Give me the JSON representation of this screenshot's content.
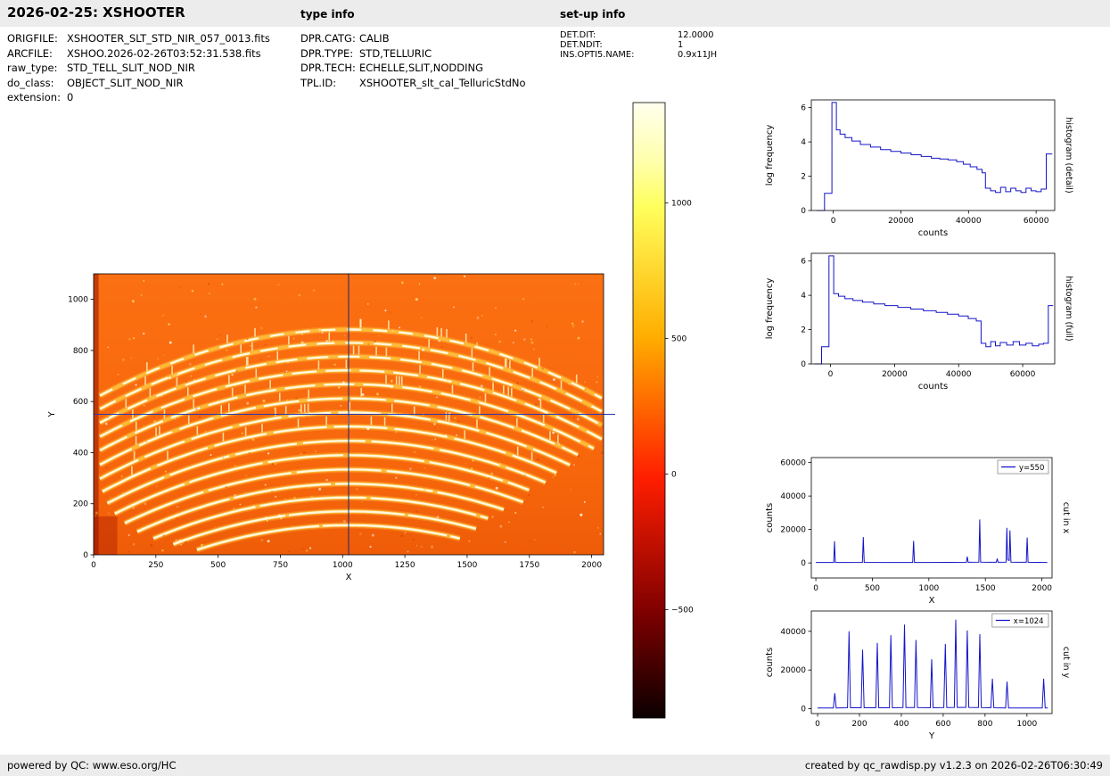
{
  "header": {
    "title": "2026-02-25: XSHOOTER",
    "type_info_label": "type info",
    "setup_info_label": "set-up info"
  },
  "metadata": {
    "file_info": [
      {
        "key": "ORIGFILE:",
        "value": "XSHOOTER_SLT_STD_NIR_057_0013.fits"
      },
      {
        "key": "ARCFILE:",
        "value": "XSHOO.2026-02-26T03:52:31.538.fits"
      },
      {
        "key": "raw_type:",
        "value": "STD_TELL_SLIT_NOD_NIR"
      },
      {
        "key": "do_class:",
        "value": "OBJECT_SLIT_NOD_NIR"
      },
      {
        "key": "extension:",
        "value": "0"
      }
    ],
    "type_info": [
      {
        "key": "DPR.CATG:",
        "value": "CALIB"
      },
      {
        "key": "DPR.TYPE:",
        "value": "STD,TELLURIC"
      },
      {
        "key": "DPR.TECH:",
        "value": "ECHELLE,SLIT,NODDING"
      },
      {
        "key": "TPL.ID:",
        "value": "XSHOOTER_slt_cal_TelluricStdNo"
      }
    ],
    "setup_info": [
      {
        "key": "DET.DIT:",
        "value": "12.0000"
      },
      {
        "key": "DET.NDIT:",
        "value": "1"
      },
      {
        "key": "INS.OPTI5.NAME:",
        "value": "0.9x11JH"
      }
    ]
  },
  "footer": {
    "left": "powered by QC: www.eso.org/HC",
    "right": "created by qc_rawdisp.py v1.2.3 on 2026-02-26T06:30:49"
  },
  "chart_data": [
    {
      "id": "raw_frame",
      "type": "heatmap",
      "title": "",
      "xlabel": "X",
      "ylabel": "Y",
      "xlim": [
        0,
        2048
      ],
      "ylim": [
        0,
        1100
      ],
      "xticks": [
        0,
        250,
        500,
        750,
        1000,
        1250,
        1500,
        1750,
        2000
      ],
      "yticks": [
        0,
        200,
        400,
        600,
        800,
        1000
      ],
      "crosshair": {
        "x": 1024,
        "y": 550
      },
      "colormap": "hot",
      "background_color": "#f8680c",
      "description": "Raw XSHOOTER NIR echelle frame: ~15 upward-bowed spectral orders, bright segments and sky-line ticks, hot colormap, crosshair at x=1024 / y=550",
      "orders": [
        {
          "apex": 882,
          "x0": 25,
          "x1": 2045,
          "dash": "16 13"
        },
        {
          "apex": 830,
          "x0": 25,
          "x1": 2045,
          "dash": "20 12"
        },
        {
          "apex": 776,
          "x0": 25,
          "x1": 2045,
          "dash": "24 11"
        },
        {
          "apex": 722,
          "x0": 25,
          "x1": 2045,
          "dash": "28 10"
        },
        {
          "apex": 668,
          "x0": 25,
          "x1": 2020,
          "dash": "34 10"
        },
        {
          "apex": 612,
          "x0": 25,
          "x1": 1975,
          "dash": "40 9"
        },
        {
          "apex": 557,
          "x0": 25,
          "x1": 1930,
          "dash": "48 8"
        },
        {
          "apex": 502,
          "x0": 35,
          "x1": 1880,
          "dash": "60 8"
        },
        {
          "apex": 446,
          "x0": 55,
          "x1": 1830,
          "dash": "70 7"
        },
        {
          "apex": 390,
          "x0": 85,
          "x1": 1780,
          "dash": "85 6"
        },
        {
          "apex": 334,
          "x0": 125,
          "x1": 1725,
          "dash": "95 6"
        },
        {
          "apex": 278,
          "x0": 175,
          "x1": 1670,
          "dash": "110 5"
        },
        {
          "apex": 224,
          "x0": 240,
          "x1": 1615,
          "dash": "120 5"
        },
        {
          "apex": 170,
          "x0": 320,
          "x1": 1555,
          "dash": "130 4"
        },
        {
          "apex": 116,
          "x0": 415,
          "x1": 1490,
          "dash": "140 4"
        }
      ]
    },
    {
      "id": "colorbar",
      "type": "colorbar",
      "colormap": "hot",
      "tick_values": [
        1000,
        500,
        0,
        -500
      ],
      "tick_labels": [
        "1000",
        "500",
        "0",
        "−500"
      ],
      "vmin": -900,
      "vmax": 1370,
      "gradient": [
        {
          "offset": 0,
          "color": "#ffffee"
        },
        {
          "offset": 0.1,
          "color": "#ffffa8"
        },
        {
          "offset": 0.17,
          "color": "#ffff5c"
        },
        {
          "offset": 0.38,
          "color": "#ffae00"
        },
        {
          "offset": 0.61,
          "color": "#ff1e00"
        },
        {
          "offset": 0.83,
          "color": "#7e0000"
        },
        {
          "offset": 1,
          "color": "#0b0000"
        }
      ]
    },
    {
      "id": "hist_detail",
      "type": "line",
      "step": true,
      "xlabel": "counts",
      "ylabel": "log frequency",
      "right_label": "histogram (detail)",
      "color": "#1414c8",
      "xlim": [
        -6500,
        65500
      ],
      "ylim": [
        0,
        6.45
      ],
      "xticks": [
        0,
        20000,
        40000,
        60000
      ],
      "yticks": [
        0,
        2,
        4,
        6
      ],
      "x": [
        -5000,
        -2600,
        -400,
        900,
        2000,
        3500,
        5500,
        8000,
        11000,
        14000,
        17000,
        20000,
        23000,
        26000,
        29000,
        31500,
        34000,
        36500,
        38500,
        40500,
        42500,
        44000,
        45000,
        46500,
        48000,
        49500,
        51000,
        52500,
        54000,
        55500,
        57000,
        58500,
        60000,
        61500,
        63000,
        64800
      ],
      "y": [
        0,
        1.0,
        6.3,
        4.7,
        4.45,
        4.25,
        4.05,
        3.85,
        3.7,
        3.55,
        3.45,
        3.35,
        3.25,
        3.15,
        3.05,
        3.0,
        2.95,
        2.85,
        2.7,
        2.55,
        2.4,
        2.2,
        1.3,
        1.15,
        1.05,
        1.35,
        1.1,
        1.3,
        1.15,
        1.05,
        1.3,
        1.15,
        1.1,
        1.25,
        3.3,
        3.3
      ]
    },
    {
      "id": "hist_full",
      "type": "line",
      "step": true,
      "xlabel": "counts",
      "ylabel": "log frequency",
      "right_label": "histogram (full)",
      "color": "#1414c8",
      "xlim": [
        -6000,
        70000
      ],
      "ylim": [
        0,
        6.45
      ],
      "xticks": [
        0,
        20000,
        40000,
        60000
      ],
      "yticks": [
        0,
        2,
        4,
        6
      ],
      "x": [
        -5000,
        -2800,
        -500,
        1000,
        2500,
        4500,
        7000,
        10000,
        13500,
        17000,
        21000,
        25000,
        29000,
        33000,
        36500,
        40000,
        43000,
        45500,
        47000,
        48500,
        50000,
        51500,
        53000,
        55000,
        57000,
        59000,
        61000,
        63000,
        65000,
        66500,
        68000,
        69500
      ],
      "y": [
        0,
        1.0,
        6.3,
        4.1,
        3.95,
        3.8,
        3.7,
        3.6,
        3.5,
        3.4,
        3.3,
        3.2,
        3.1,
        3.0,
        2.9,
        2.8,
        2.65,
        2.5,
        1.2,
        1.0,
        1.3,
        1.05,
        1.25,
        1.1,
        1.3,
        1.1,
        1.2,
        1.05,
        1.15,
        1.2,
        3.4,
        3.4
      ]
    },
    {
      "id": "cut_x",
      "type": "line",
      "step": false,
      "legend": "y=550",
      "xlabel": "X",
      "ylabel": "counts",
      "right_label": "cut in x",
      "color": "#1414c8",
      "xlim": [
        -40,
        2090
      ],
      "ylim": [
        -9000,
        63000
      ],
      "xticks": [
        0,
        500,
        1000,
        1500,
        2000
      ],
      "yticks": [
        0,
        20000,
        40000,
        60000
      ],
      "x": [
        0,
        150,
        158,
        165,
        172,
        300,
        412,
        420,
        428,
        600,
        857,
        865,
        873,
        1000,
        1332,
        1340,
        1348,
        1442,
        1450,
        1458,
        1540,
        1597,
        1605,
        1613,
        1683,
        1690,
        1697,
        1711,
        1718,
        1726,
        1800,
        1862,
        1870,
        1878,
        2048
      ],
      "y": [
        300,
        300,
        300,
        13000,
        300,
        300,
        350,
        15500,
        350,
        300,
        300,
        13200,
        300,
        300,
        400,
        3800,
        400,
        500,
        26000,
        500,
        400,
        400,
        2600,
        400,
        500,
        21000,
        1800,
        1500,
        19500,
        500,
        400,
        400,
        15200,
        400,
        300
      ]
    },
    {
      "id": "cut_y",
      "type": "line",
      "step": false,
      "legend": "x=1024",
      "xlabel": "Y",
      "ylabel": "counts",
      "right_label": "cut in y",
      "color": "#1414c8",
      "xlim": [
        -30,
        1120
      ],
      "ylim": [
        -2500,
        50500
      ],
      "xticks": [
        0,
        200,
        400,
        600,
        800,
        1000
      ],
      "yticks": [
        0,
        20000,
        40000
      ],
      "x": [
        0,
        75,
        82,
        89,
        143,
        150,
        157,
        208,
        215,
        222,
        278,
        285,
        292,
        343,
        350,
        357,
        408,
        415,
        422,
        463,
        470,
        477,
        538,
        545,
        552,
        603,
        610,
        617,
        653,
        660,
        667,
        708,
        715,
        722,
        768,
        775,
        782,
        828,
        835,
        842,
        898,
        905,
        912,
        1073,
        1080,
        1087,
        1100
      ],
      "y": [
        400,
        400,
        8000,
        400,
        500,
        40000,
        500,
        500,
        30500,
        500,
        500,
        34000,
        500,
        500,
        38000,
        500,
        600,
        43500,
        600,
        600,
        35500,
        600,
        500,
        25500,
        500,
        600,
        33500,
        600,
        700,
        46000,
        700,
        700,
        40500,
        700,
        600,
        38500,
        600,
        500,
        15500,
        500,
        400,
        14000,
        400,
        400,
        15500,
        400,
        400
      ]
    }
  ]
}
